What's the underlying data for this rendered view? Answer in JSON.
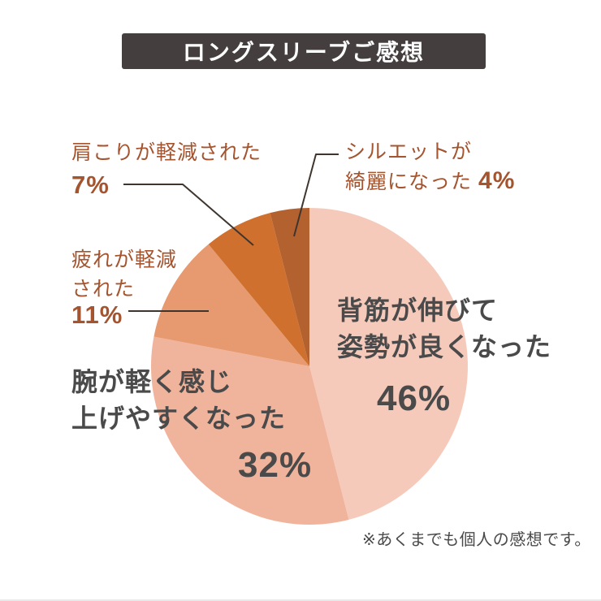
{
  "header": {
    "title": "ロングスリーブご感想"
  },
  "footnote": {
    "text": "※あくまでも個人の感想です。"
  },
  "theme": {
    "badge-bg": "#453e3e",
    "badge-text": "#ffffff",
    "label-accent": "#a4542e",
    "label-dark": "#4a4a4a",
    "leader": "#3f352f",
    "bg": "#ffffff",
    "baseline": "#e9e9e9"
  },
  "chart_data": {
    "type": "pie",
    "title": "ロングスリーブご感想",
    "unit": "%",
    "start_angle": "12-o'clock",
    "direction": "clockwise",
    "legend_position": "outside-labels-with-leader-lines",
    "slices": [
      {
        "label": "背筋が伸びて姿勢が良くなった",
        "value": 46,
        "color": "#f5cabb"
      },
      {
        "label": "腕が軽く感じ上げやすくなった",
        "value": 32,
        "color": "#f0b39c"
      },
      {
        "label": "疲れが軽減された",
        "value": 11,
        "color": "#e7996f"
      },
      {
        "label": "肩こりが軽減された",
        "value": 7,
        "color": "#d0702e"
      },
      {
        "label": "シルエットが綺麗になった",
        "value": 4,
        "color": "#b46130"
      }
    ],
    "annotation": "※あくまでも個人の感想です。"
  },
  "labels": {
    "sesuji": {
      "line1": "背筋が伸びて",
      "line2": "姿勢が良くなった",
      "pct": "46%"
    },
    "ude": {
      "line1": "腕が軽く感じ",
      "line2": "上げやすくなった",
      "pct": "32%"
    },
    "tsukare": {
      "line1": "疲れが軽減",
      "line2": "された",
      "pct": "11%"
    },
    "katakori": {
      "line1": "肩こりが軽減された",
      "pct": "7%"
    },
    "silhouette": {
      "line1": "シルエットが",
      "line2": "綺麗になった",
      "pct": "4%"
    }
  }
}
